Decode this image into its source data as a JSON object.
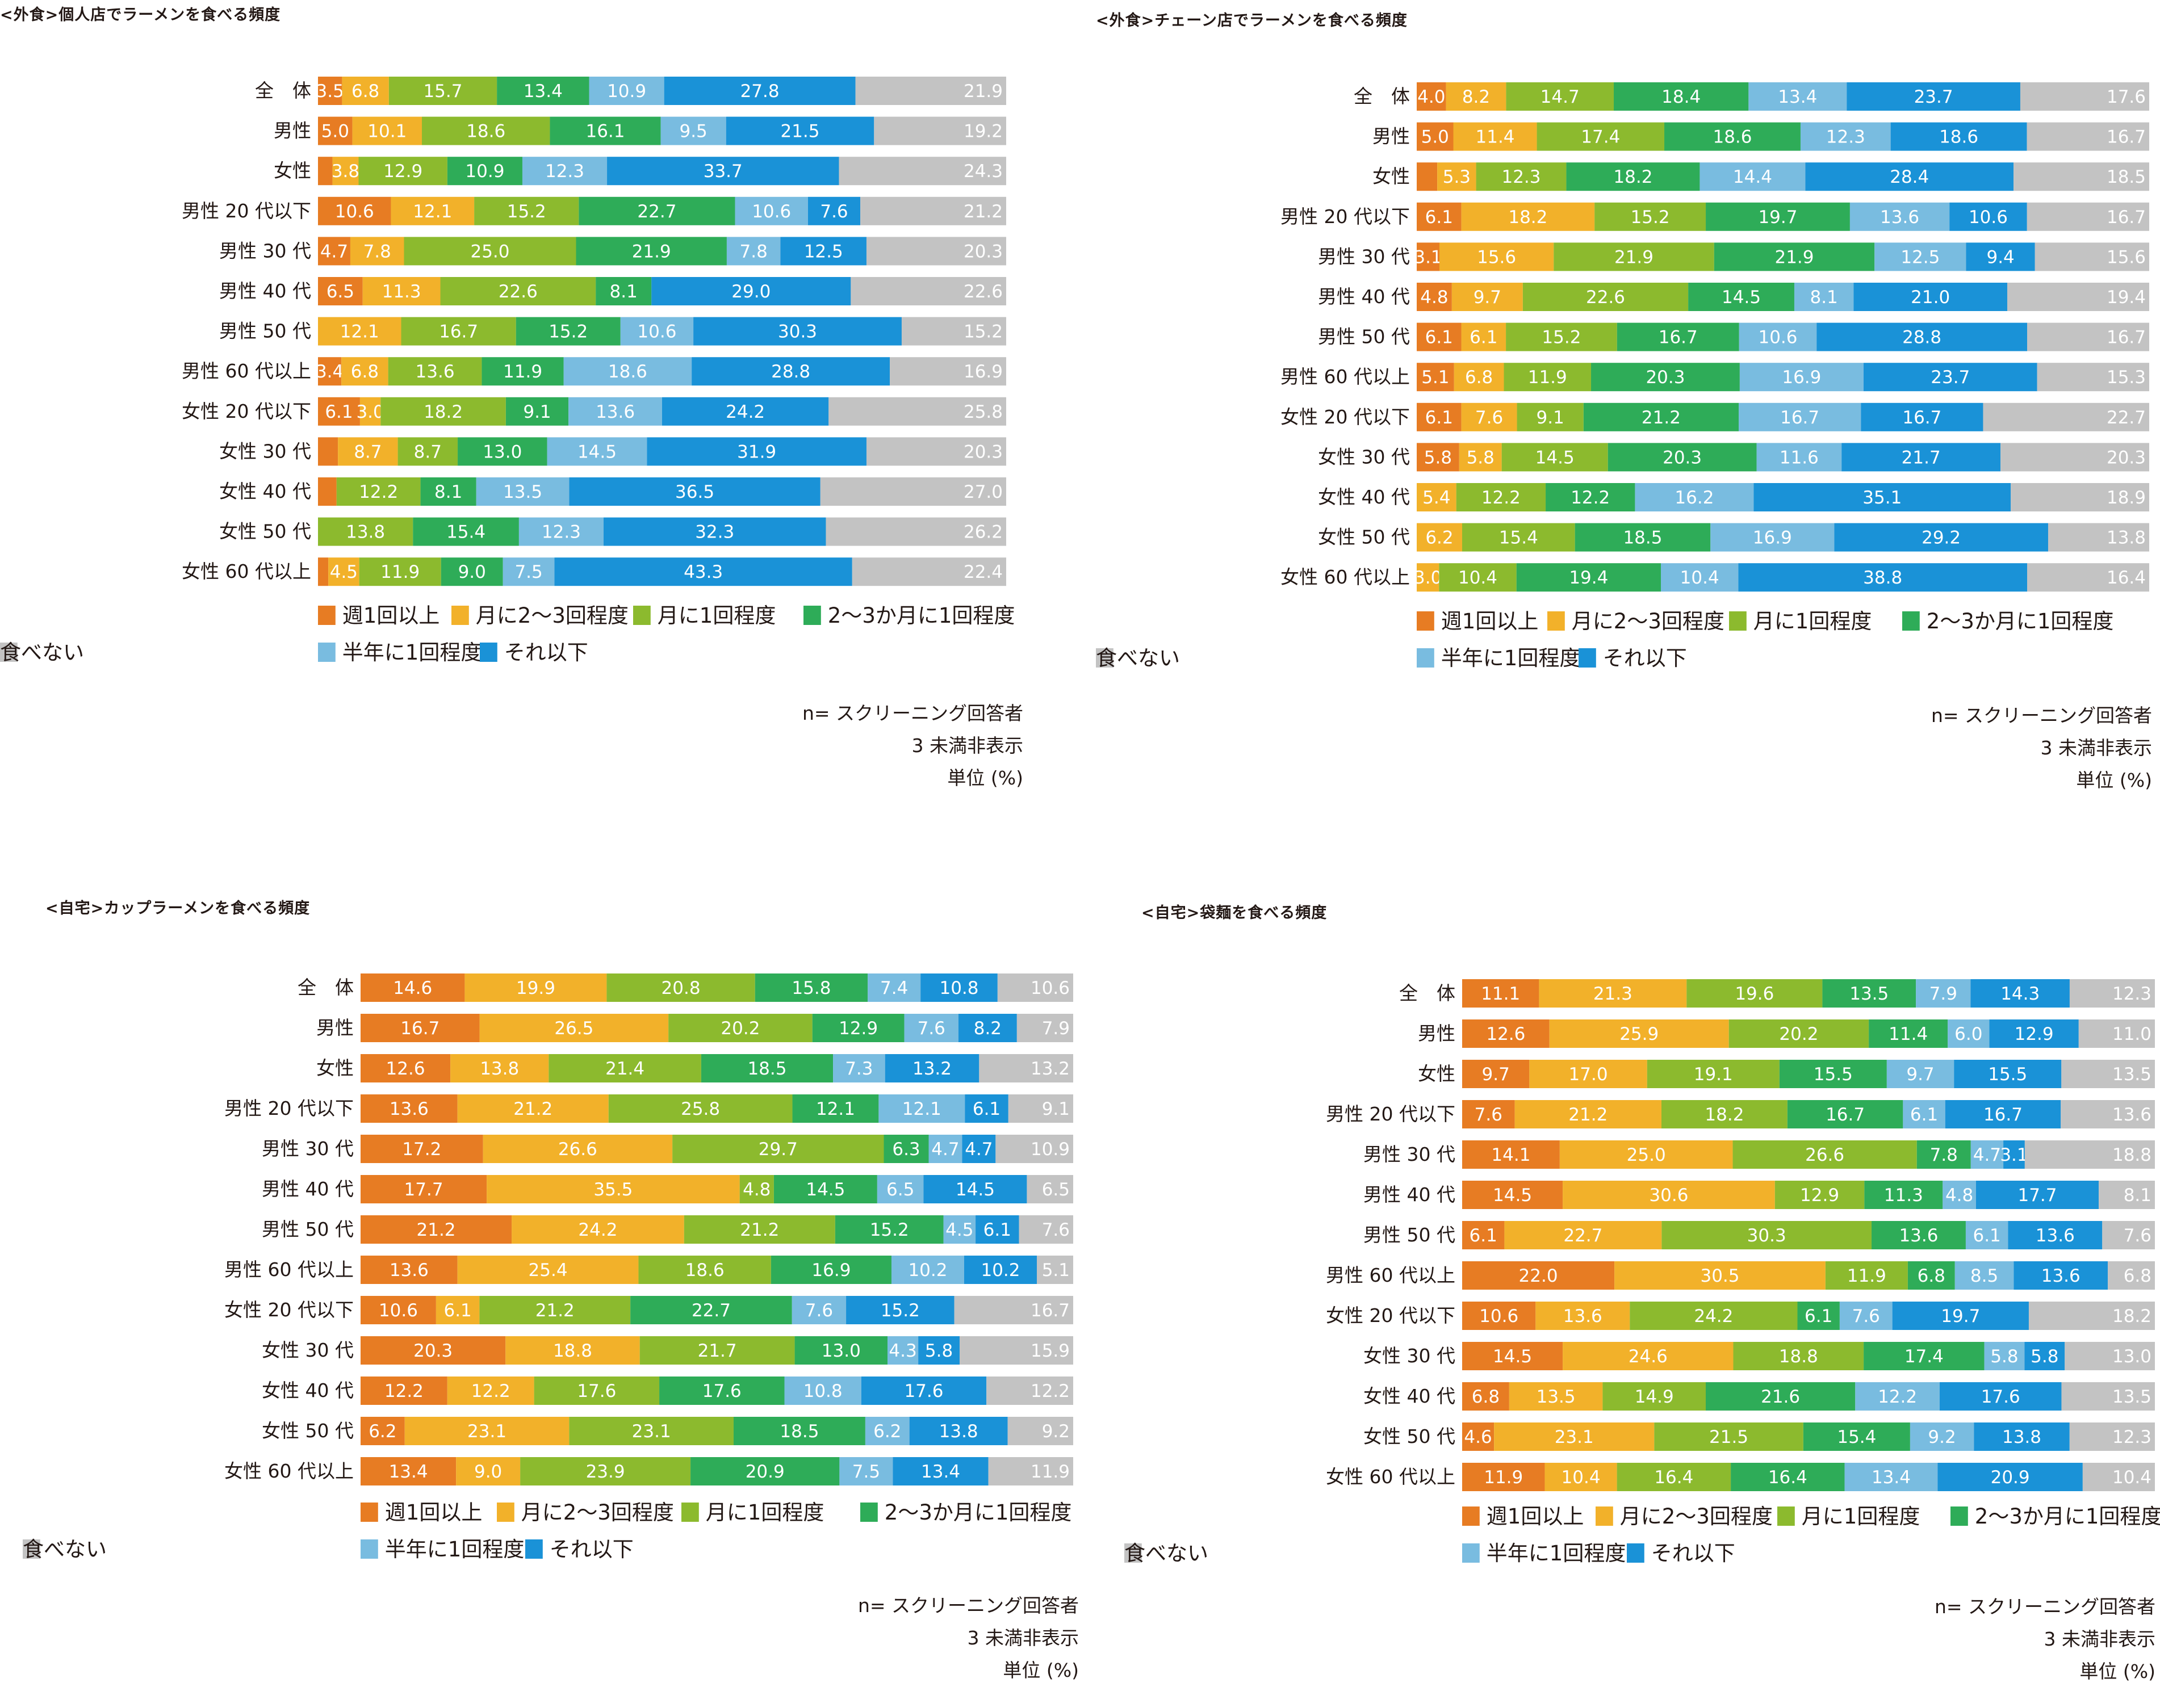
{
  "palette": {
    "weekly": "#e77c23",
    "twice_month": "#f2b12a",
    "once_month": "#8cba2e",
    "two_three_months": "#2eac58",
    "half_year": "#79bce0",
    "less": "#1a92d7",
    "never": "#c3c3c3"
  },
  "legend": [
    {
      "key": "weekly",
      "label": "週1回以上"
    },
    {
      "key": "twice_month",
      "label": "月に2〜3回程度"
    },
    {
      "key": "once_month",
      "label": "月に1回程度"
    },
    {
      "key": "two_three_months",
      "label": "2〜3か月に1回程度"
    },
    {
      "key": "half_year",
      "label": "半年に1回程度"
    },
    {
      "key": "less",
      "label": "それ以下"
    },
    {
      "key": "never",
      "label": "食べない"
    }
  ],
  "notes": {
    "n": "n= スクリーニング回答者",
    "threshold": "3 未満非表示",
    "unit": "単位 (%)"
  },
  "chart_data": [
    {
      "type": "bar",
      "orientation": "horizontal-stacked-100",
      "title": "<外食>個人店でラーメンを食べる頻度",
      "categories": [
        "全　体",
        "男性",
        "女性",
        "男性 20 代以下",
        "男性 30 代",
        "男性 40 代",
        "男性 50 代",
        "男性 60 代以上",
        "女性 20 代以下",
        "女性 30 代",
        "女性 40 代",
        "女性 50 代",
        "女性 60 代以上"
      ],
      "rows": [
        [
          3.5,
          6.8,
          15.7,
          13.4,
          10.9,
          27.8,
          21.9
        ],
        [
          5.0,
          10.1,
          18.6,
          16.1,
          9.5,
          21.5,
          19.2
        ],
        [
          2.1,
          3.8,
          12.9,
          10.9,
          12.3,
          33.7,
          24.3
        ],
        [
          10.6,
          12.1,
          15.2,
          22.7,
          10.6,
          7.6,
          21.2
        ],
        [
          4.7,
          7.8,
          25.0,
          21.9,
          7.8,
          12.5,
          20.3
        ],
        [
          6.5,
          11.3,
          22.6,
          8.1,
          0,
          29.0,
          22.6
        ],
        [
          0,
          12.1,
          16.7,
          15.2,
          10.6,
          30.3,
          15.2
        ],
        [
          3.4,
          6.8,
          13.6,
          11.9,
          18.6,
          28.8,
          16.9
        ],
        [
          6.1,
          3.0,
          18.2,
          9.1,
          13.6,
          24.2,
          25.8
        ],
        [
          2.9,
          8.7,
          8.7,
          13.0,
          14.5,
          31.9,
          20.3
        ],
        [
          2.7,
          0,
          12.2,
          8.1,
          13.5,
          36.5,
          27.0
        ],
        [
          0,
          0,
          13.8,
          15.4,
          12.3,
          32.3,
          26.2
        ],
        [
          1.5,
          4.5,
          11.9,
          9.0,
          7.5,
          43.3,
          22.4
        ]
      ],
      "labels": [
        [
          "3.5",
          "6.8",
          "15.7",
          "13.4",
          "10.9",
          "27.8",
          "21.9"
        ],
        [
          "5.0",
          "10.1",
          "18.6",
          "16.1",
          "9.5",
          "21.5",
          "19.2"
        ],
        [
          "",
          "3.8",
          "12.9",
          "10.9",
          "12.3",
          "33.7",
          "24.3"
        ],
        [
          "10.6",
          "12.1",
          "15.2",
          "22.7",
          "10.6",
          "7.6",
          "21.2"
        ],
        [
          "4.7",
          "7.8",
          "25.0",
          "21.9",
          "7.8",
          "12.5",
          "20.3"
        ],
        [
          "6.5",
          "11.3",
          "22.6",
          "8.1",
          "",
          "29.0",
          "22.6"
        ],
        [
          "",
          "12.1",
          "16.7",
          "15.2",
          "10.6",
          "30.3",
          "15.2"
        ],
        [
          "3.4",
          "6.8",
          "13.6",
          "11.9",
          "18.6",
          "28.8",
          "16.9"
        ],
        [
          "6.1",
          "3.0",
          "18.2",
          "9.1",
          "13.6",
          "24.2",
          "25.8"
        ],
        [
          "",
          "8.7",
          "8.7",
          "13.0",
          "14.5",
          "31.9",
          "20.3"
        ],
        [
          "",
          "",
          "12.2",
          "8.1",
          "13.5",
          "36.5",
          "27.0"
        ],
        [
          "",
          "",
          "13.8",
          "15.4",
          "12.3",
          "32.3",
          "26.2"
        ],
        [
          "",
          "4.5",
          "11.9",
          "9.0",
          "7.5",
          "43.3",
          "22.4"
        ]
      ]
    },
    {
      "type": "bar",
      "orientation": "horizontal-stacked-100",
      "title": "<外食>チェーン店でラーメンを食べる頻度",
      "categories": [
        "全　体",
        "男性",
        "女性",
        "男性 20 代以下",
        "男性 30 代",
        "男性 40 代",
        "男性 50 代",
        "男性 60 代以上",
        "女性 20 代以下",
        "女性 30 代",
        "女性 40 代",
        "女性 50 代",
        "女性 60 代以上"
      ],
      "rows": [
        [
          4.0,
          8.2,
          14.7,
          18.4,
          13.4,
          23.7,
          17.6
        ],
        [
          5.0,
          11.4,
          17.4,
          18.6,
          12.3,
          18.6,
          16.7
        ],
        [
          2.8,
          5.3,
          12.3,
          18.2,
          14.4,
          28.4,
          18.5
        ],
        [
          6.1,
          18.2,
          15.2,
          19.7,
          13.6,
          10.6,
          16.7
        ],
        [
          3.1,
          15.6,
          21.9,
          21.9,
          12.5,
          9.4,
          15.6
        ],
        [
          4.8,
          9.7,
          22.6,
          14.5,
          8.1,
          21.0,
          19.4
        ],
        [
          6.1,
          6.1,
          15.2,
          16.7,
          10.6,
          28.8,
          16.7
        ],
        [
          5.1,
          6.8,
          11.9,
          20.3,
          16.9,
          23.7,
          15.3
        ],
        [
          6.1,
          7.6,
          9.1,
          21.2,
          16.7,
          16.7,
          22.7
        ],
        [
          5.8,
          5.8,
          14.5,
          20.3,
          11.6,
          21.7,
          20.3
        ],
        [
          0,
          5.4,
          12.2,
          12.2,
          16.2,
          35.1,
          18.9
        ],
        [
          0,
          6.2,
          15.4,
          18.5,
          16.9,
          29.2,
          13.8
        ],
        [
          0,
          3.0,
          10.4,
          19.4,
          10.4,
          38.8,
          16.4
        ]
      ],
      "labels": [
        [
          "4.0",
          "8.2",
          "14.7",
          "18.4",
          "13.4",
          "23.7",
          "17.6"
        ],
        [
          "5.0",
          "11.4",
          "17.4",
          "18.6",
          "12.3",
          "18.6",
          "16.7"
        ],
        [
          "",
          "5.3",
          "12.3",
          "18.2",
          "14.4",
          "28.4",
          "18.5"
        ],
        [
          "6.1",
          "18.2",
          "15.2",
          "19.7",
          "13.6",
          "10.6",
          "16.7"
        ],
        [
          "3.1",
          "15.6",
          "21.9",
          "21.9",
          "12.5",
          "9.4",
          "15.6"
        ],
        [
          "4.8",
          "9.7",
          "22.6",
          "14.5",
          "8.1",
          "21.0",
          "19.4"
        ],
        [
          "6.1",
          "6.1",
          "15.2",
          "16.7",
          "10.6",
          "28.8",
          "16.7"
        ],
        [
          "5.1",
          "6.8",
          "11.9",
          "20.3",
          "16.9",
          "23.7",
          "15.3"
        ],
        [
          "6.1",
          "7.6",
          "9.1",
          "21.2",
          "16.7",
          "16.7",
          "22.7"
        ],
        [
          "5.8",
          "5.8",
          "14.5",
          "20.3",
          "11.6",
          "21.7",
          "20.3"
        ],
        [
          "",
          "5.4",
          "12.2",
          "12.2",
          "16.2",
          "35.1",
          "18.9"
        ],
        [
          "",
          "6.2",
          "15.4",
          "18.5",
          "16.9",
          "29.2",
          "13.8"
        ],
        [
          "",
          "3.0",
          "10.4",
          "19.4",
          "10.4",
          "38.8",
          "16.4"
        ]
      ]
    },
    {
      "type": "bar",
      "orientation": "horizontal-stacked-100",
      "title": "<自宅>カップラーメンを食べる頻度",
      "categories": [
        "全　体",
        "男性",
        "女性",
        "男性 20 代以下",
        "男性 30 代",
        "男性 40 代",
        "男性 50 代",
        "男性 60 代以上",
        "女性 20 代以下",
        "女性 30 代",
        "女性 40 代",
        "女性 50 代",
        "女性 60 代以上"
      ],
      "rows": [
        [
          14.6,
          19.9,
          20.8,
          15.8,
          7.4,
          10.8,
          10.6
        ],
        [
          16.7,
          26.5,
          20.2,
          12.9,
          7.6,
          8.2,
          7.9
        ],
        [
          12.6,
          13.8,
          21.4,
          18.5,
          7.3,
          13.2,
          13.2
        ],
        [
          13.6,
          21.2,
          25.8,
          12.1,
          12.1,
          6.1,
          9.1
        ],
        [
          17.2,
          26.6,
          29.7,
          6.3,
          4.7,
          4.7,
          10.9
        ],
        [
          17.7,
          35.5,
          4.8,
          14.5,
          6.5,
          14.5,
          6.5
        ],
        [
          21.2,
          24.2,
          21.2,
          15.2,
          4.5,
          6.1,
          7.6
        ],
        [
          13.6,
          25.4,
          18.6,
          16.9,
          10.2,
          10.2,
          5.1
        ],
        [
          10.6,
          6.1,
          21.2,
          22.7,
          7.6,
          15.2,
          16.7
        ],
        [
          20.3,
          18.8,
          21.7,
          13.0,
          4.3,
          5.8,
          15.9
        ],
        [
          12.2,
          12.2,
          17.6,
          17.6,
          10.8,
          17.6,
          12.2
        ],
        [
          6.2,
          23.1,
          23.1,
          18.5,
          6.2,
          13.8,
          9.2
        ],
        [
          13.4,
          9.0,
          23.9,
          20.9,
          7.5,
          13.4,
          11.9
        ]
      ],
      "labels": [
        [
          "14.6",
          "19.9",
          "20.8",
          "15.8",
          "7.4",
          "10.8",
          "10.6"
        ],
        [
          "16.7",
          "26.5",
          "20.2",
          "12.9",
          "7.6",
          "8.2",
          "7.9"
        ],
        [
          "12.6",
          "13.8",
          "21.4",
          "18.5",
          "7.3",
          "13.2",
          "13.2"
        ],
        [
          "13.6",
          "21.2",
          "25.8",
          "12.1",
          "12.1",
          "6.1",
          "9.1"
        ],
        [
          "17.2",
          "26.6",
          "29.7",
          "6.3",
          "4.7",
          "4.7",
          "10.9"
        ],
        [
          "17.7",
          "35.5",
          "4.8",
          "14.5",
          "6.5",
          "14.5",
          "6.5"
        ],
        [
          "21.2",
          "24.2",
          "21.2",
          "15.2",
          "4.5",
          "6.1",
          "7.6"
        ],
        [
          "13.6",
          "25.4",
          "18.6",
          "16.9",
          "10.2",
          "10.2",
          "5.1"
        ],
        [
          "10.6",
          "6.1",
          "21.2",
          "22.7",
          "7.6",
          "15.2",
          "16.7"
        ],
        [
          "20.3",
          "18.8",
          "21.7",
          "13.0",
          "4.3",
          "5.8",
          "15.9"
        ],
        [
          "12.2",
          "12.2",
          "17.6",
          "17.6",
          "10.8",
          "17.6",
          "12.2"
        ],
        [
          "6.2",
          "23.1",
          "23.1",
          "18.5",
          "6.2",
          "13.8",
          "9.2"
        ],
        [
          "13.4",
          "9.0",
          "23.9",
          "20.9",
          "7.5",
          "13.4",
          "11.9"
        ]
      ]
    },
    {
      "type": "bar",
      "orientation": "horizontal-stacked-100",
      "title": "<自宅>袋麺を食べる頻度",
      "categories": [
        "全　体",
        "男性",
        "女性",
        "男性 20 代以下",
        "男性 30 代",
        "男性 40 代",
        "男性 50 代",
        "男性 60 代以上",
        "女性 20 代以下",
        "女性 30 代",
        "女性 40 代",
        "女性 50 代",
        "女性 60 代以上"
      ],
      "rows": [
        [
          11.1,
          21.3,
          19.6,
          13.5,
          7.9,
          14.3,
          12.3
        ],
        [
          12.6,
          25.9,
          20.2,
          11.4,
          6.0,
          12.9,
          11.0
        ],
        [
          9.7,
          17.0,
          19.1,
          15.5,
          9.7,
          15.5,
          13.5
        ],
        [
          7.6,
          21.2,
          18.2,
          16.7,
          6.1,
          16.7,
          13.6
        ],
        [
          14.1,
          25.0,
          26.6,
          7.8,
          4.7,
          3.1,
          18.8
        ],
        [
          14.5,
          30.6,
          12.9,
          11.3,
          4.8,
          17.7,
          8.1
        ],
        [
          6.1,
          22.7,
          30.3,
          13.6,
          6.1,
          13.6,
          7.6
        ],
        [
          22.0,
          30.5,
          11.9,
          6.8,
          8.5,
          13.6,
          6.8
        ],
        [
          10.6,
          13.6,
          24.2,
          6.1,
          7.6,
          19.7,
          18.2
        ],
        [
          14.5,
          24.6,
          18.8,
          17.4,
          5.8,
          5.8,
          13.0
        ],
        [
          6.8,
          13.5,
          14.9,
          21.6,
          12.2,
          17.6,
          13.5
        ],
        [
          4.6,
          23.1,
          21.5,
          15.4,
          9.2,
          13.8,
          12.3
        ],
        [
          11.9,
          10.4,
          16.4,
          16.4,
          13.4,
          20.9,
          10.4
        ]
      ],
      "labels": [
        [
          "11.1",
          "21.3",
          "19.6",
          "13.5",
          "7.9",
          "14.3",
          "12.3"
        ],
        [
          "12.6",
          "25.9",
          "20.2",
          "11.4",
          "6.0",
          "12.9",
          "11.0"
        ],
        [
          "9.7",
          "17.0",
          "19.1",
          "15.5",
          "9.7",
          "15.5",
          "13.5"
        ],
        [
          "7.6",
          "21.2",
          "18.2",
          "16.7",
          "6.1",
          "16.7",
          "13.6"
        ],
        [
          "14.1",
          "25.0",
          "26.6",
          "7.8",
          "4.7",
          "3.1",
          "18.8"
        ],
        [
          "14.5",
          "30.6",
          "12.9",
          "11.3",
          "4.8",
          "17.7",
          "8.1"
        ],
        [
          "6.1",
          "22.7",
          "30.3",
          "13.6",
          "6.1",
          "13.6",
          "7.6"
        ],
        [
          "22.0",
          "30.5",
          "11.9",
          "6.8",
          "8.5",
          "13.6",
          "6.8"
        ],
        [
          "10.6",
          "13.6",
          "24.2",
          "6.1",
          "7.6",
          "19.7",
          "18.2"
        ],
        [
          "14.5",
          "24.6",
          "18.8",
          "17.4",
          "5.8",
          "5.8",
          "13.0"
        ],
        [
          "6.8",
          "13.5",
          "14.9",
          "21.6",
          "12.2",
          "17.6",
          "13.5"
        ],
        [
          "4.6",
          "23.1",
          "21.5",
          "15.4",
          "9.2",
          "13.8",
          "12.3"
        ],
        [
          "11.9",
          "10.4",
          "16.4",
          "16.4",
          "13.4",
          "20.9",
          "10.4"
        ]
      ]
    }
  ]
}
